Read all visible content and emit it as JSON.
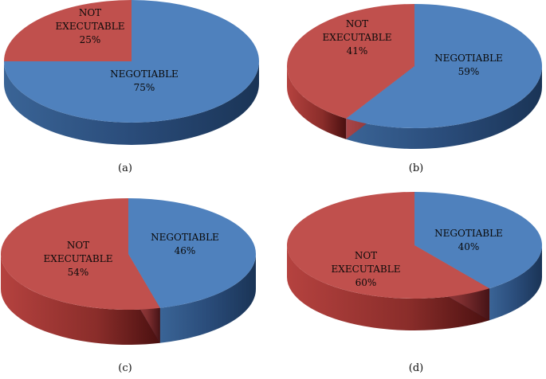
{
  "colors": {
    "negotiable_top": "#4f81bd",
    "negotiable_side": "#2a4c7a",
    "not_executable_top": "#c0504d",
    "not_executable_side": "#7a2321"
  },
  "chart_data": [
    {
      "type": "pie",
      "caption": "(a)",
      "slices": [
        {
          "name": "NEGOTIABLE",
          "value": 75,
          "label_lines": [
            "NEGOTIABLE",
            "75%"
          ]
        },
        {
          "name": "NOT EXECUTABLE",
          "value": 25,
          "label_lines": [
            "NOT",
            "EXECUTABLE",
            "25%"
          ]
        }
      ]
    },
    {
      "type": "pie",
      "caption": "(b)",
      "slices": [
        {
          "name": "NEGOTIABLE",
          "value": 59,
          "label_lines": [
            "NEGOTIABLE",
            "59%"
          ]
        },
        {
          "name": "NOT EXECUTABLE",
          "value": 41,
          "label_lines": [
            "NOT",
            "EXECUTABLE",
            "41%"
          ]
        }
      ]
    },
    {
      "type": "pie",
      "caption": "(c)",
      "slices": [
        {
          "name": "NEGOTIABLE",
          "value": 46,
          "label_lines": [
            "NEGOTIABLE",
            "46%"
          ]
        },
        {
          "name": "NOT EXECUTABLE",
          "value": 54,
          "label_lines": [
            "NOT",
            "EXECUTABLE",
            "54%"
          ]
        }
      ]
    },
    {
      "type": "pie",
      "caption": "(d)",
      "slices": [
        {
          "name": "NEGOTIABLE",
          "value": 40,
          "label_lines": [
            "NEGOTIABLE",
            "40%"
          ]
        },
        {
          "name": "NOT EXECUTABLE",
          "value": 60,
          "label_lines": [
            "NOT",
            "EXECUTABLE",
            "60%"
          ]
        }
      ]
    }
  ]
}
